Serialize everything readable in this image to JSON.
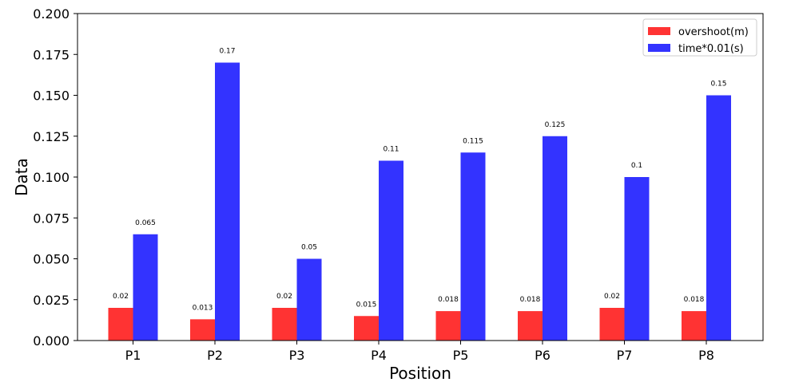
{
  "chart_data": {
    "type": "bar",
    "title": "",
    "xlabel": "Position",
    "ylabel": "Data",
    "categories": [
      "P1",
      "P2",
      "P3",
      "P4",
      "P5",
      "P6",
      "P7",
      "P8"
    ],
    "ylim": [
      0,
      0.2
    ],
    "yticks": [
      "0.000",
      "0.025",
      "0.050",
      "0.075",
      "0.100",
      "0.125",
      "0.150",
      "0.175",
      "0.200"
    ],
    "grid": false,
    "legend_position": "top-right",
    "series": [
      {
        "name": "overshoot(m)",
        "color": "#ff3333",
        "values": [
          0.02,
          0.013,
          0.02,
          0.015,
          0.018,
          0.018,
          0.02,
          0.018
        ],
        "labels": [
          "0.02",
          "0.013",
          "0.02",
          "0.015",
          "0.018",
          "0.018",
          "0.02",
          "0.018"
        ]
      },
      {
        "name": "time*0.01(s)",
        "color": "#3333ff",
        "values": [
          0.065,
          0.17,
          0.05,
          0.11,
          0.115,
          0.125,
          0.1,
          0.15
        ],
        "labels": [
          "0.065",
          "0.17",
          "0.05",
          "0.11",
          "0.115",
          "0.125",
          "0.1",
          "0.15"
        ]
      }
    ]
  }
}
